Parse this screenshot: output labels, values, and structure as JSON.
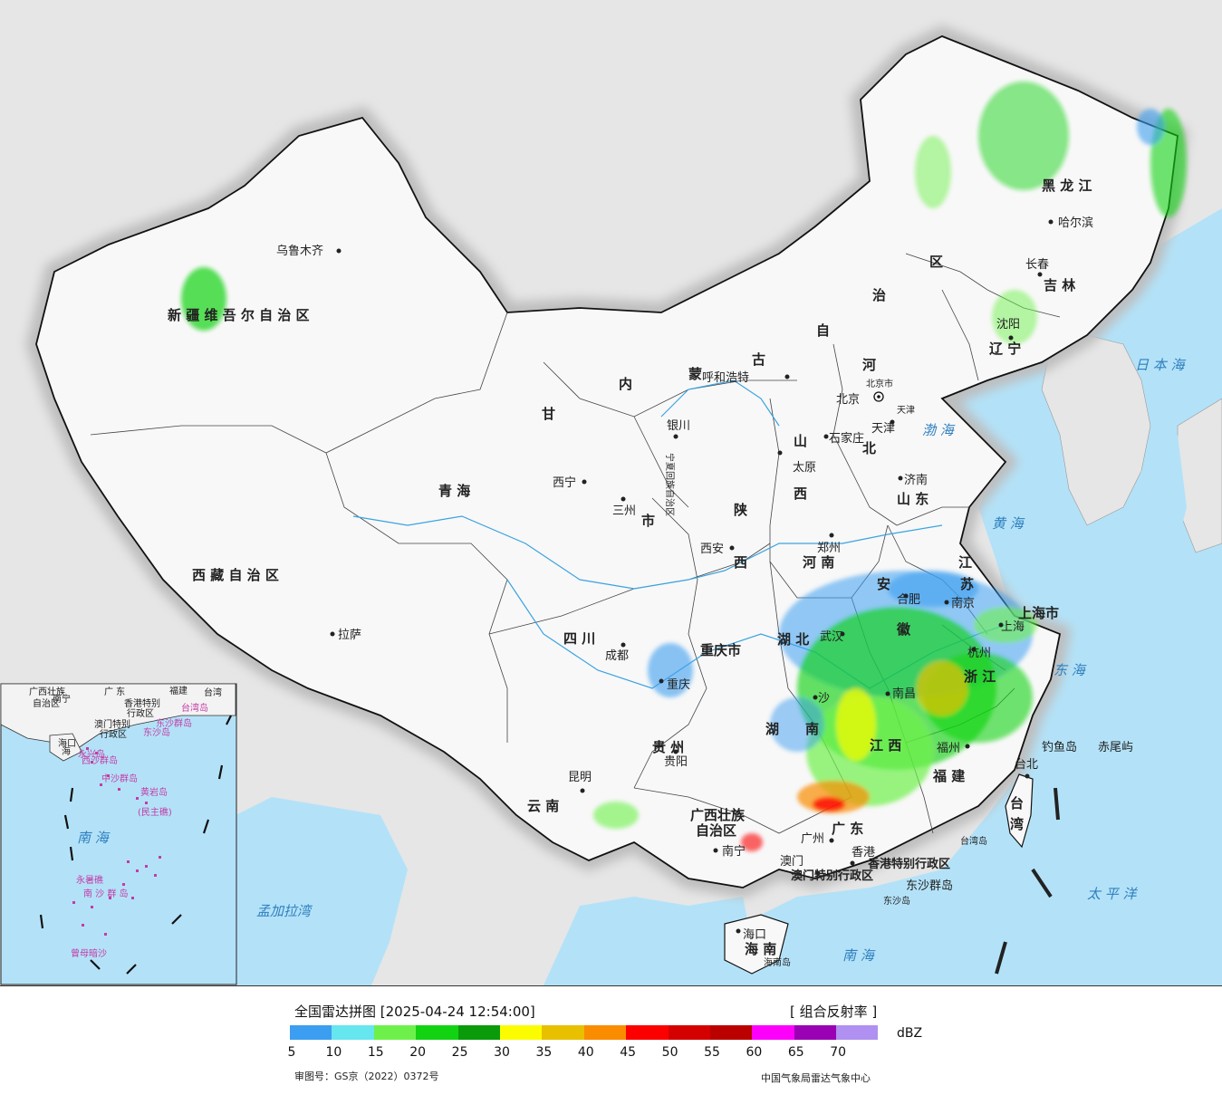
{
  "map": {
    "provinces": [
      {
        "id": "xinjiang",
        "label": "新 疆 维 吾 尔 自 治 区"
      },
      {
        "id": "xizang",
        "label": "西 藏 自 治 区"
      },
      {
        "id": "qinghai",
        "label": "青   海"
      },
      {
        "id": "gansu",
        "label": "甘"
      },
      {
        "id": "neimenggu1",
        "label": "内"
      },
      {
        "id": "neimenggu2",
        "label": "蒙"
      },
      {
        "id": "neimenggu3",
        "label": "古"
      },
      {
        "id": "neimenggu4",
        "label": "自"
      },
      {
        "id": "neimenggu5",
        "label": "治"
      },
      {
        "id": "neimenggu6",
        "label": "区"
      },
      {
        "id": "heilongjiang",
        "label": "黑  龙  江"
      },
      {
        "id": "jilin",
        "label": "吉  林"
      },
      {
        "id": "liaoning",
        "label": "辽 宁"
      },
      {
        "id": "hebei1",
        "label": "河"
      },
      {
        "id": "hebei2",
        "label": "北"
      },
      {
        "id": "shanxi1",
        "label": "山"
      },
      {
        "id": "shanxi2",
        "label": "西"
      },
      {
        "id": "shandong",
        "label": "山 东"
      },
      {
        "id": "shaanxi1",
        "label": "陕"
      },
      {
        "id": "shaanxi2",
        "label": "西"
      },
      {
        "id": "henan",
        "label": "河  南"
      },
      {
        "id": "sichuan",
        "label": "四    川"
      },
      {
        "id": "chongqing",
        "label": "重庆市"
      },
      {
        "id": "hubei",
        "label": "湖  北"
      },
      {
        "id": "hunan1",
        "label": "湖"
      },
      {
        "id": "hunan2",
        "label": "南"
      },
      {
        "id": "guizhou",
        "label": "贵  州"
      },
      {
        "id": "yunnan",
        "label": "云   南"
      },
      {
        "id": "guangxi",
        "label": "广西壮族"
      },
      {
        "id": "guangxi2",
        "label": "自治区"
      },
      {
        "id": "guangdong",
        "label": "广  东"
      },
      {
        "id": "jiangxi",
        "label": "江 西"
      },
      {
        "id": "fujian",
        "label": "福   建"
      },
      {
        "id": "zhejiang",
        "label": "浙 江"
      },
      {
        "id": "anhui1",
        "label": "安"
      },
      {
        "id": "anhui2",
        "label": "徽"
      },
      {
        "id": "jiangsu1",
        "label": "江"
      },
      {
        "id": "jiangsu2",
        "label": "苏"
      },
      {
        "id": "shanghai",
        "label": "上海市"
      },
      {
        "id": "taiwan1",
        "label": "台"
      },
      {
        "id": "taiwan2",
        "label": "湾"
      },
      {
        "id": "hainan",
        "label": "海 南"
      },
      {
        "id": "ningxia",
        "label": "宁夏回族自治区"
      },
      {
        "id": "gansu2",
        "label": "市"
      },
      {
        "id": "hongkong",
        "label": "香港特别行政区"
      },
      {
        "id": "macau",
        "label": "澳门特别行政区"
      }
    ],
    "cities": [
      {
        "id": "urumqi",
        "label": "乌鲁木齐"
      },
      {
        "id": "lhasa",
        "label": "拉萨"
      },
      {
        "id": "xining",
        "label": "西宁"
      },
      {
        "id": "lanzhou",
        "label": "三州"
      },
      {
        "id": "yinchuan",
        "label": "银川"
      },
      {
        "id": "hohhot",
        "label": "呼和浩特"
      },
      {
        "id": "beijing",
        "label": "北京"
      },
      {
        "id": "tianjin",
        "label": "天津"
      },
      {
        "id": "shijiazhuang",
        "label": "石家庄"
      },
      {
        "id": "taiyuan",
        "label": "太原"
      },
      {
        "id": "jinan",
        "label": "济南"
      },
      {
        "id": "zhengzhou",
        "label": "郑州"
      },
      {
        "id": "xian",
        "label": "西安"
      },
      {
        "id": "chengdu",
        "label": "成都"
      },
      {
        "id": "chongqing_city",
        "label": "重庆"
      },
      {
        "id": "guiyang",
        "label": "贵阳"
      },
      {
        "id": "kunming",
        "label": "昆明"
      },
      {
        "id": "nanning",
        "label": "南宁"
      },
      {
        "id": "guangzhou",
        "label": "广州"
      },
      {
        "id": "hongkong_city",
        "label": "香港"
      },
      {
        "id": "macau_city",
        "label": "澳门"
      },
      {
        "id": "haikou",
        "label": "海口"
      },
      {
        "id": "taibei",
        "label": "台北"
      },
      {
        "id": "fuzhou",
        "label": "福州"
      },
      {
        "id": "nanchang",
        "label": "南昌"
      },
      {
        "id": "changsha",
        "label": "沙"
      },
      {
        "id": "hefei",
        "label": "合肥"
      },
      {
        "id": "nanjing",
        "label": "南京"
      },
      {
        "id": "hangzhou",
        "label": "杭州"
      },
      {
        "id": "shanghai_city",
        "label": "上海"
      },
      {
        "id": "wuhan",
        "label": "武汉"
      },
      {
        "id": "shenyang",
        "label": "沈阳"
      },
      {
        "id": "changchun",
        "label": "长春"
      },
      {
        "id": "harbin",
        "label": "哈尔滨"
      },
      {
        "id": "beijing_small",
        "label": "北京市"
      },
      {
        "id": "tianjin_small",
        "label": "天津"
      }
    ],
    "seas": [
      {
        "id": "japan_sea",
        "label": "日 本 海"
      },
      {
        "id": "bohai",
        "label": "渤 海"
      },
      {
        "id": "yellow_sea",
        "label": "黄 海"
      },
      {
        "id": "east_sea",
        "label": "东 海"
      },
      {
        "id": "pacific",
        "label": "太  平  洋"
      },
      {
        "id": "south_sea",
        "label": "南         海"
      },
      {
        "id": "bengal",
        "label": "孟加拉湾"
      },
      {
        "id": "inset_south_sea",
        "label": "南   海"
      }
    ],
    "islands": [
      {
        "id": "diaoyu",
        "label": "钓鱼岛"
      },
      {
        "id": "chiwei",
        "label": "赤尾屿"
      },
      {
        "id": "taiwan_island",
        "label": "台湾岛"
      },
      {
        "id": "dongsha",
        "label": "东沙群岛"
      },
      {
        "id": "dongsha2",
        "label": "东沙岛"
      },
      {
        "id": "hainan_island",
        "label": "海南岛"
      }
    ],
    "inset": [
      {
        "id": "i1",
        "label": "广西壮族"
      },
      {
        "id": "i2",
        "label": "自治区"
      },
      {
        "id": "i3",
        "label": "广  东"
      },
      {
        "id": "i4",
        "label": "福建"
      },
      {
        "id": "i5",
        "label": "台湾"
      },
      {
        "id": "i6",
        "label": "香港特别"
      },
      {
        "id": "i7",
        "label": "澳门特别"
      },
      {
        "id": "i8",
        "label": "行政区"
      },
      {
        "id": "i9",
        "label": "行政区"
      },
      {
        "id": "i10",
        "label": "东沙群岛"
      },
      {
        "id": "i11",
        "label": "台湾岛"
      },
      {
        "id": "i12",
        "label": "海口"
      },
      {
        "id": "i13",
        "label": "海"
      },
      {
        "id": "i14",
        "label": "西沙群岛"
      },
      {
        "id": "i15",
        "label": "永兴岛"
      },
      {
        "id": "i16",
        "label": "中沙群岛"
      },
      {
        "id": "i17",
        "label": "黄岩岛"
      },
      {
        "id": "i18",
        "label": "(民主礁)"
      },
      {
        "id": "i19",
        "label": "永暑礁"
      },
      {
        "id": "i20",
        "label": "南 沙 群 岛"
      },
      {
        "id": "i21",
        "label": "曾母暗沙"
      },
      {
        "id": "i22",
        "label": "东沙岛"
      },
      {
        "id": "i23",
        "label": "南宁"
      }
    ]
  },
  "legend": {
    "title": "全国雷达拼图 [2025-04-24 12:54:00]",
    "product": "[ 组合反射率 ]",
    "unit": "dBZ",
    "colors": [
      "#3c9ef0",
      "#66e6ee",
      "#6df14a",
      "#12d312",
      "#0a9b0a",
      "#fcfc00",
      "#e8c000",
      "#fa8c00",
      "#fc0000",
      "#d40000",
      "#bb0000",
      "#fc00fc",
      "#9a00b4",
      "#b090f0"
    ],
    "ticks": [
      "5",
      "10",
      "15",
      "20",
      "25",
      "30",
      "35",
      "40",
      "45",
      "50",
      "55",
      "60",
      "65",
      "70"
    ],
    "approval": "审图号：GS京（2022）0372号",
    "agency": "中国气象局雷达气象中心"
  }
}
